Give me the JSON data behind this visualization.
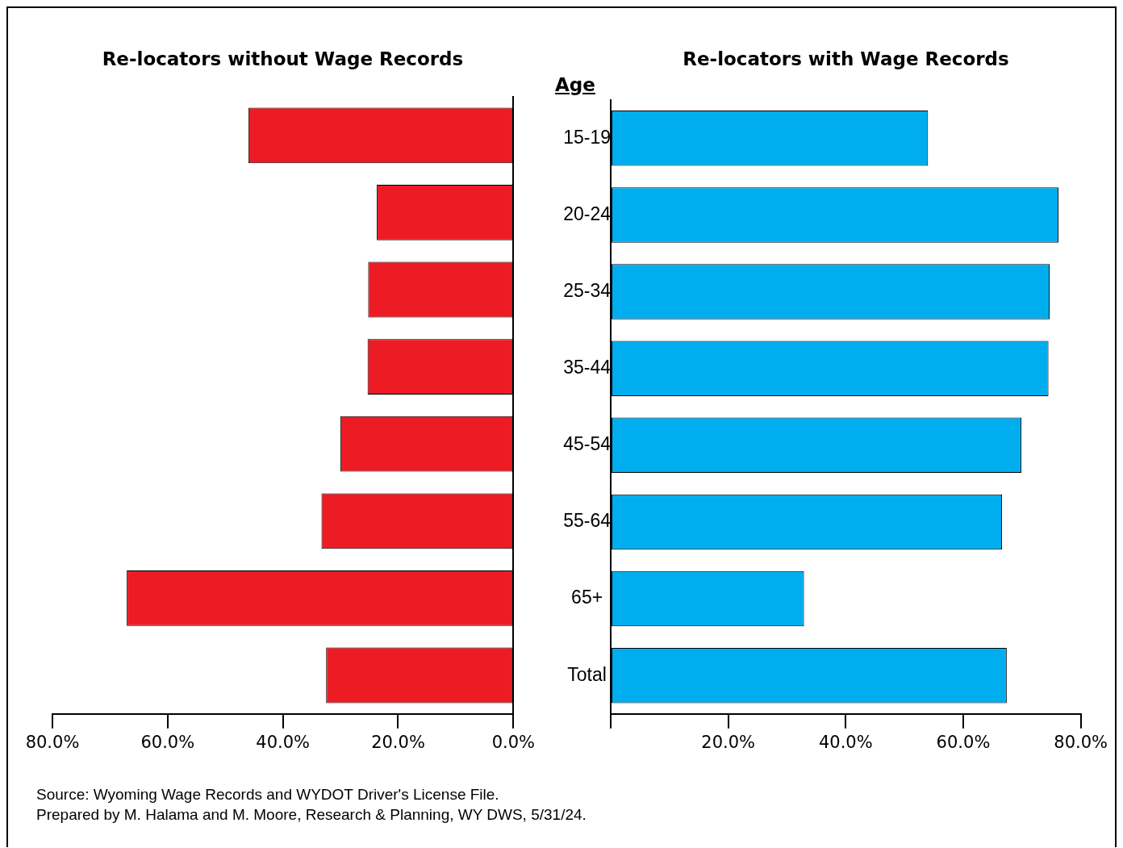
{
  "chart_data": [
    {
      "type": "bar",
      "orientation": "horizontal",
      "title": "Re-locators without Wage Records",
      "categories": [
        null,
        null,
        null,
        null,
        null,
        null,
        null,
        null
      ],
      "tick_labels": "x",
      "values": [
        46.0,
        23.7,
        25.2,
        25.3,
        30.0,
        33.3,
        67.1,
        32.5
      ],
      "color": "#ed1c24",
      "xlim": [
        80,
        0
      ],
      "xticks": [
        {
          "value": 80,
          "label": "80.0%"
        },
        {
          "value": 60,
          "label": "60.0%"
        },
        {
          "value": 40,
          "label": "40.0%"
        },
        {
          "value": 20,
          "label": "20.0%"
        },
        {
          "value": 0,
          "label": "0.0%"
        }
      ]
    },
    {
      "type": "bar",
      "orientation": "horizontal",
      "title": "Re-locators with Wage Records",
      "ylabel": "Age",
      "categories": [
        "15-19",
        "20-24",
        "25-34",
        "35-44",
        "45-54",
        "55-64",
        "65+",
        "Total"
      ],
      "values": [
        54.0,
        76.2,
        74.7,
        74.5,
        69.9,
        66.6,
        32.9,
        67.4
      ],
      "color": "#00aeef",
      "xlim": [
        0,
        80
      ],
      "xticks": [
        {
          "value": 0,
          "label": null
        },
        {
          "value": 20,
          "label": "20.0%"
        },
        {
          "value": 40,
          "label": "40.0%"
        },
        {
          "value": 60,
          "label": "60.0%"
        },
        {
          "value": 80,
          "label": "80.0%"
        }
      ],
      "annotations": [
        "Source: Wyoming Wage Records and WYDOT Driver's License File.",
        "Prepared by M. Halama and M. Moore, Research & Planning, WY DWS, 5/31/24."
      ]
    }
  ]
}
